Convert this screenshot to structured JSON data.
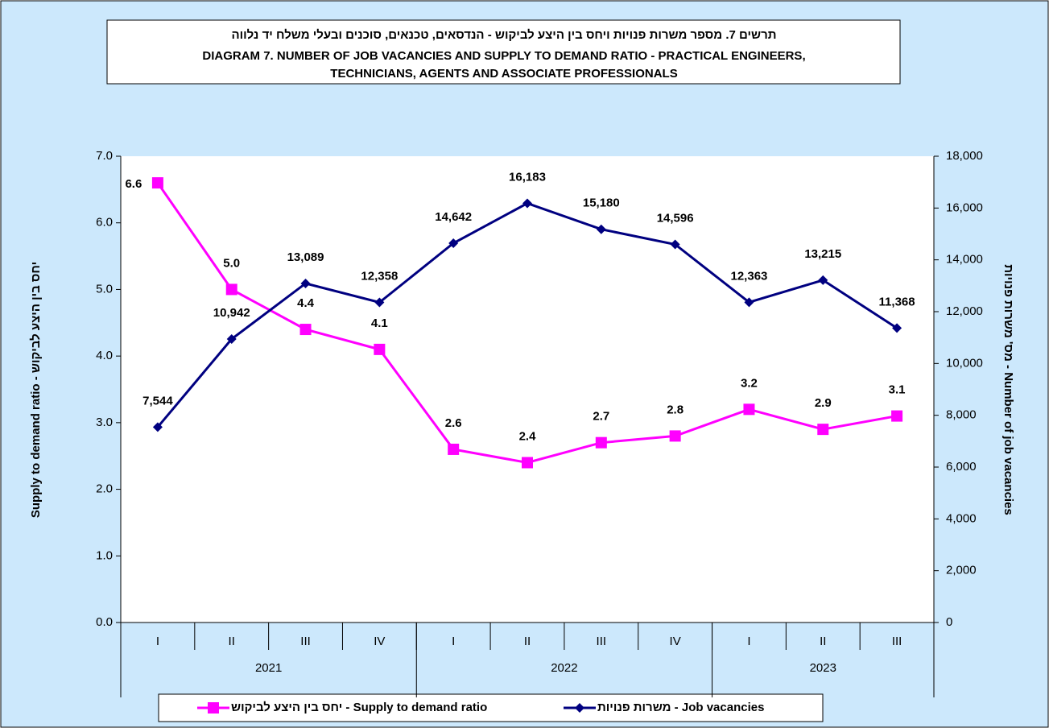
{
  "chart_data": {
    "type": "line",
    "title": [
      "תרשים 7. מספר משרות פנויות ויחס בין היצע לביקוש - הנדסאים, טכנאים, סוכנים ובעלי משלח יד נלווה",
      "DIAGRAM 7. NUMBER OF JOB VACANCIES AND SUPPLY TO DEMAND RATIO -  PRACTICAL ENGINEERS,",
      "TECHNICIANS, AGENTS AND ASSOCIATE PROFESSIONALS"
    ],
    "y_label": "Supply to demand ratio - יחס בין היצע לביקוש",
    "y2_label": "Number of job vacancies - מס' משרות פנויות",
    "categories": [
      "I",
      "II",
      "III",
      "IV",
      "I",
      "II",
      "III",
      "IV",
      "I",
      "II",
      "III"
    ],
    "groups": [
      "2021",
      "2022",
      "2023"
    ],
    "group_sizes": [
      4,
      4,
      3
    ],
    "ylim": [
      0,
      7
    ],
    "yticks": [
      {
        "value": 0,
        "label": "0.0"
      },
      {
        "value": 1,
        "label": "1.0"
      },
      {
        "value": 2,
        "label": "2.0"
      },
      {
        "value": 3,
        "label": "3.0"
      },
      {
        "value": 4,
        "label": "4.0"
      },
      {
        "value": 5,
        "label": "5.0"
      },
      {
        "value": 6,
        "label": "6.0"
      },
      {
        "value": 7,
        "label": "7.0"
      }
    ],
    "y2lim": [
      0,
      18000
    ],
    "y2ticks": [
      0,
      {
        "value": 2000,
        "label": "2,000"
      },
      {
        "value": 4000,
        "label": "4,000"
      },
      {
        "value": 6000,
        "label": "6,000"
      },
      {
        "value": 8000,
        "label": "8,000"
      },
      {
        "value": 10000,
        "label": "10,000"
      },
      {
        "value": 12000,
        "label": "12,000"
      },
      {
        "value": 14000,
        "label": "14,000"
      },
      {
        "value": 16000,
        "label": "16,000"
      },
      {
        "value": 18000,
        "label": "18,000"
      }
    ],
    "series": [
      {
        "name": "Supply to demand ratio - יחס בין היצע לביקוש",
        "color": "#ff00ff",
        "marker": "square",
        "axis": "y",
        "values": [
          6.6,
          5.0,
          4.4,
          4.1,
          2.6,
          2.4,
          2.7,
          2.8,
          3.2,
          2.9,
          3.1
        ],
        "value_labels": [
          "6.6",
          "5.0",
          "4.4",
          "4.1",
          "2.6",
          "2.4",
          "2.7",
          "2.8",
          "3.2",
          "2.9",
          "3.1"
        ]
      },
      {
        "name": "Job vacancies - משרות פנויות",
        "color": "#000080",
        "marker": "diamond",
        "axis": "y2",
        "values": [
          7544,
          10942,
          13089,
          12358,
          14642,
          16183,
          15180,
          14596,
          12363,
          13215,
          11368
        ],
        "value_labels": [
          "7,544",
          "10,942",
          "13,089",
          "12,358",
          "14,642",
          "16,183",
          "15,180",
          "14,596",
          "12,363",
          "13,215",
          "11,368"
        ]
      }
    ]
  }
}
